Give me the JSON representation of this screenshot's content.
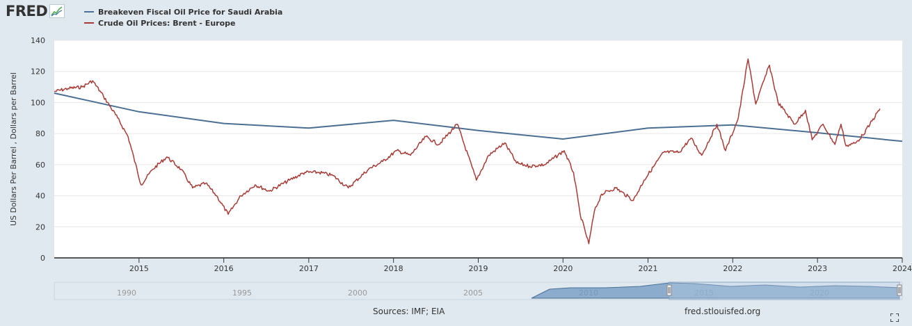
{
  "header": {
    "logo_text": "FRED"
  },
  "legend": [
    {
      "label": "Breakeven Fiscal Oil Price for Saudi Arabia",
      "color": "#4b6f93"
    },
    {
      "label": "Crude Oil Prices: Brent - Europe",
      "color": "#a83a35"
    }
  ],
  "footer": {
    "sources": "Sources: IMF; EIA",
    "url": "fred.stlouisfed.org"
  },
  "chart_data": {
    "type": "line",
    "ylabel": "US Dollars Per Barrel , Dollars per Barrel",
    "ylim": [
      0,
      140
    ],
    "yticks": [
      0,
      20,
      40,
      60,
      80,
      100,
      120,
      140
    ],
    "xlim": [
      "2014-01-01",
      "2024-01-01"
    ],
    "xticks": [
      "2015",
      "2016",
      "2017",
      "2018",
      "2019",
      "2020",
      "2021",
      "2022",
      "2023",
      "2024"
    ],
    "grid": true,
    "legend_position": "top-left",
    "series": [
      {
        "name": "Breakeven Fiscal Oil Price for Saudi Arabia",
        "color": "#4b6f93",
        "x": [
          "2014-01-01",
          "2015-01-01",
          "2016-01-01",
          "2017-01-01",
          "2018-01-01",
          "2019-01-01",
          "2020-01-01",
          "2021-01-01",
          "2022-01-01",
          "2023-01-01",
          "2024-01-01"
        ],
        "y": [
          106.0,
          94.0,
          86.5,
          83.5,
          88.5,
          82.0,
          76.5,
          83.5,
          85.5,
          80.5,
          75.0
        ]
      },
      {
        "name": "Crude Oil Prices: Brent - Europe",
        "color": "#a83a35",
        "x": [
          "2014-01-01",
          "2014-03-01",
          "2014-05-01",
          "2014-06-15",
          "2014-08-01",
          "2014-10-01",
          "2014-11-15",
          "2015-01-10",
          "2015-03-01",
          "2015-05-01",
          "2015-07-01",
          "2015-08-20",
          "2015-10-15",
          "2015-12-01",
          "2016-01-20",
          "2016-03-15",
          "2016-05-15",
          "2016-07-15",
          "2016-10-10",
          "2016-12-15",
          "2017-02-15",
          "2017-04-15",
          "2017-06-20",
          "2017-09-15",
          "2017-11-15",
          "2018-01-15",
          "2018-03-15",
          "2018-05-20",
          "2018-07-15",
          "2018-10-03",
          "2018-12-24",
          "2019-02-15",
          "2019-04-25",
          "2019-06-15",
          "2019-08-10",
          "2019-10-15",
          "2020-01-06",
          "2020-02-15",
          "2020-03-15",
          "2020-04-21",
          "2020-05-15",
          "2020-06-15",
          "2020-08-15",
          "2020-10-30",
          "2020-12-15",
          "2021-03-10",
          "2021-05-15",
          "2021-07-05",
          "2021-08-20",
          "2021-10-25",
          "2021-12-01",
          "2022-01-25",
          "2022-03-08",
          "2022-04-10",
          "2022-06-08",
          "2022-07-15",
          "2022-09-25",
          "2022-11-10",
          "2022-12-09",
          "2023-01-25",
          "2023-03-17",
          "2023-04-12",
          "2023-05-04",
          "2023-06-15",
          "2023-07-15",
          "2023-08-15",
          "2023-09-27"
        ],
        "y": [
          107,
          109,
          110,
          114,
          104,
          90,
          78,
          47,
          57,
          65,
          57,
          45,
          48,
          40,
          28,
          40,
          47,
          43,
          50,
          55,
          55,
          53,
          45,
          57,
          62,
          69,
          66,
          78,
          73,
          86,
          50,
          66,
          74,
          61,
          59,
          60,
          69,
          55,
          28,
          9.1,
          30,
          41,
          45,
          37,
          50,
          68,
          68,
          77,
          66,
          86,
          69,
          90,
          128,
          99,
          124,
          100,
          86,
          95,
          76,
          86,
          73,
          86,
          72,
          74,
          79,
          86,
          96
        ]
      }
    ],
    "navigator": {
      "labels": [
        "1990",
        "1995",
        "2000",
        "2005",
        "2010",
        "2015",
        "2020"
      ]
    }
  }
}
